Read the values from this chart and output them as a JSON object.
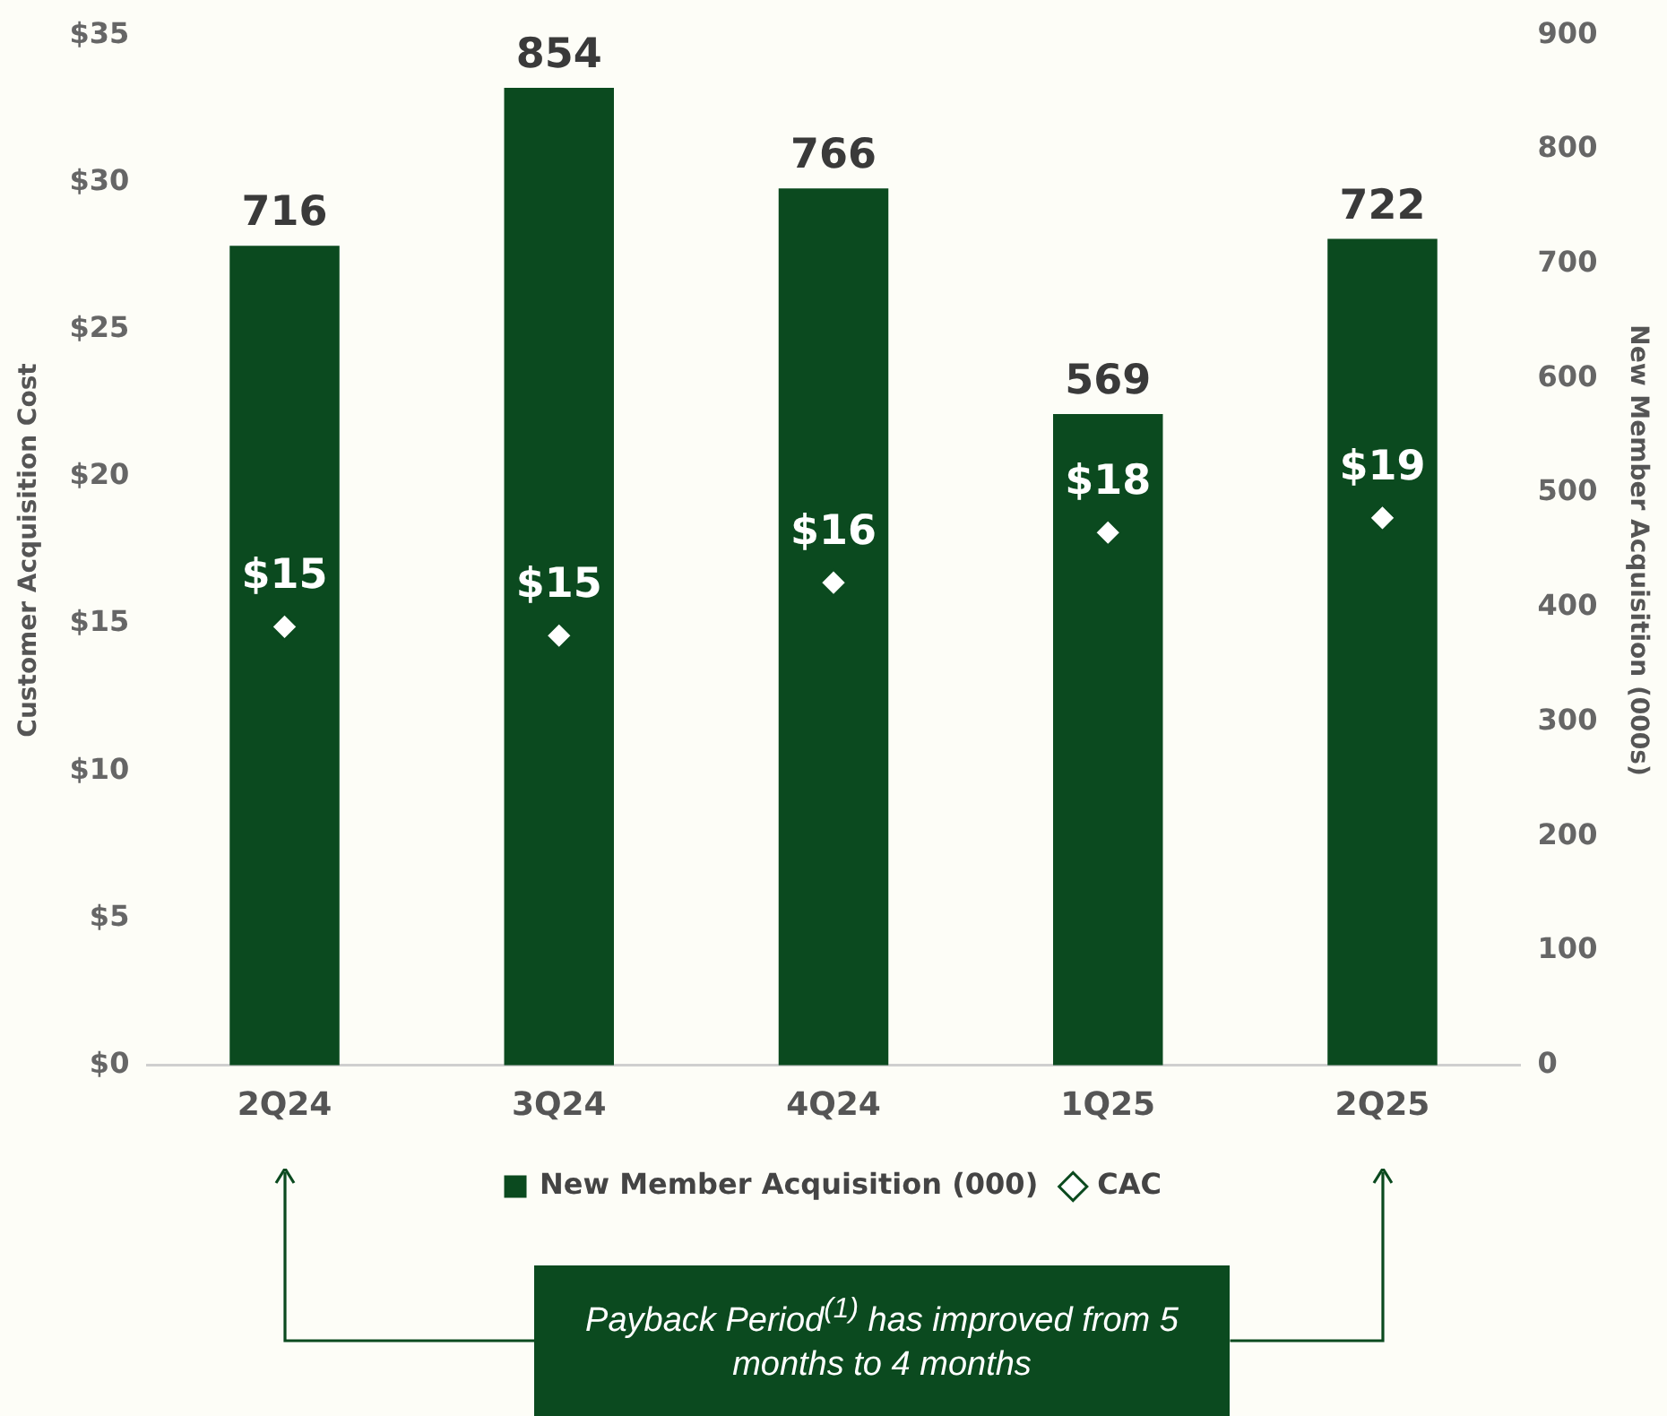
{
  "chart_data": {
    "type": "bar",
    "categories": [
      "2Q24",
      "3Q24",
      "4Q24",
      "1Q25",
      "2Q25"
    ],
    "ylabel": "Customer Acquisition Cost",
    "y2label": "New Member Acquisition (000s)",
    "ylim": [
      0,
      35
    ],
    "yticks": [
      {
        "value": 0,
        "label": "$0"
      },
      {
        "value": 5,
        "label": "$5"
      },
      {
        "value": 10,
        "label": "$10"
      },
      {
        "value": 15,
        "label": "$15"
      },
      {
        "value": 20,
        "label": "$20"
      },
      {
        "value": 25,
        "label": "$25"
      },
      {
        "value": 30,
        "label": "$30"
      },
      {
        "value": 35,
        "label": "$35"
      }
    ],
    "y2lim": [
      0,
      900
    ],
    "y2ticks": [
      0,
      100,
      200,
      300,
      400,
      500,
      600,
      700,
      800,
      900
    ],
    "series": [
      {
        "name": "New Member Acquisition (000)",
        "type": "bar",
        "axis": "y2",
        "color": "#0b4a1f",
        "values": [
          716,
          854,
          766,
          569,
          722
        ],
        "value_labels": [
          "716",
          "854",
          "766",
          "569",
          "722"
        ]
      },
      {
        "name": "CAC",
        "type": "scatter",
        "marker": "diamond",
        "x": [
          "2Q24",
          "3Q24",
          "4Q24",
          "1Q25",
          "2Q25"
        ],
        "color": "#ffffff",
        "values": [
          14.9,
          14.6,
          16.4,
          18.1,
          18.6
        ],
        "value_labels": [
          "$15",
          "$15",
          "$16",
          "$18",
          "$19"
        ]
      }
    ],
    "legend": "bottom",
    "grid": false,
    "annotations": [
      "Payback Period$^{(1)}$ has improved from 5 months to 4 months"
    ]
  }
}
